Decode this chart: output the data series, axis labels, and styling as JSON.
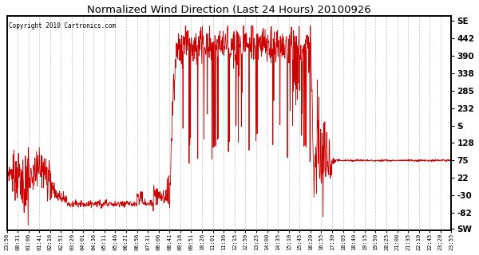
{
  "title": "Normalized Wind Direction (Last 24 Hours) 20100926",
  "copyright": "Copyright 2010 Cartronics.com",
  "line_color": "#cc0000",
  "bg_color": "#ffffff",
  "grid_color": "#999999",
  "ylim": [
    -135,
    510
  ],
  "xlim_max": 41,
  "yticks_right_vals": [
    -130,
    -82,
    -30,
    22,
    75,
    128,
    180,
    232,
    285,
    338,
    390,
    442,
    494
  ],
  "yticks_right_labels_map": {
    "-130": "SW",
    "-82": "-82",
    "-30": "-30",
    "22": "22",
    "75": "75",
    "128": "128",
    "180": "S",
    "232": "232",
    "285": "285",
    "338": "338",
    "390": "390",
    "442": "442",
    "494": "SE"
  },
  "xtick_labels": [
    "23:56",
    "00:31",
    "01:06",
    "01:41",
    "02:16",
    "02:51",
    "03:26",
    "04:01",
    "04:36",
    "05:11",
    "05:46",
    "06:21",
    "06:56",
    "07:31",
    "08:06",
    "08:41",
    "09:16",
    "09:51",
    "10:26",
    "11:01",
    "11:36",
    "12:15",
    "12:50",
    "13:25",
    "14:00",
    "14:35",
    "15:10",
    "15:45",
    "16:20",
    "16:55",
    "17:30",
    "18:05",
    "18:40",
    "19:15",
    "19:50",
    "20:25",
    "21:00",
    "21:35",
    "22:10",
    "22:45",
    "23:20",
    "23:55"
  ],
  "figsize": [
    6.0,
    3.2
  ],
  "dpi": 100
}
